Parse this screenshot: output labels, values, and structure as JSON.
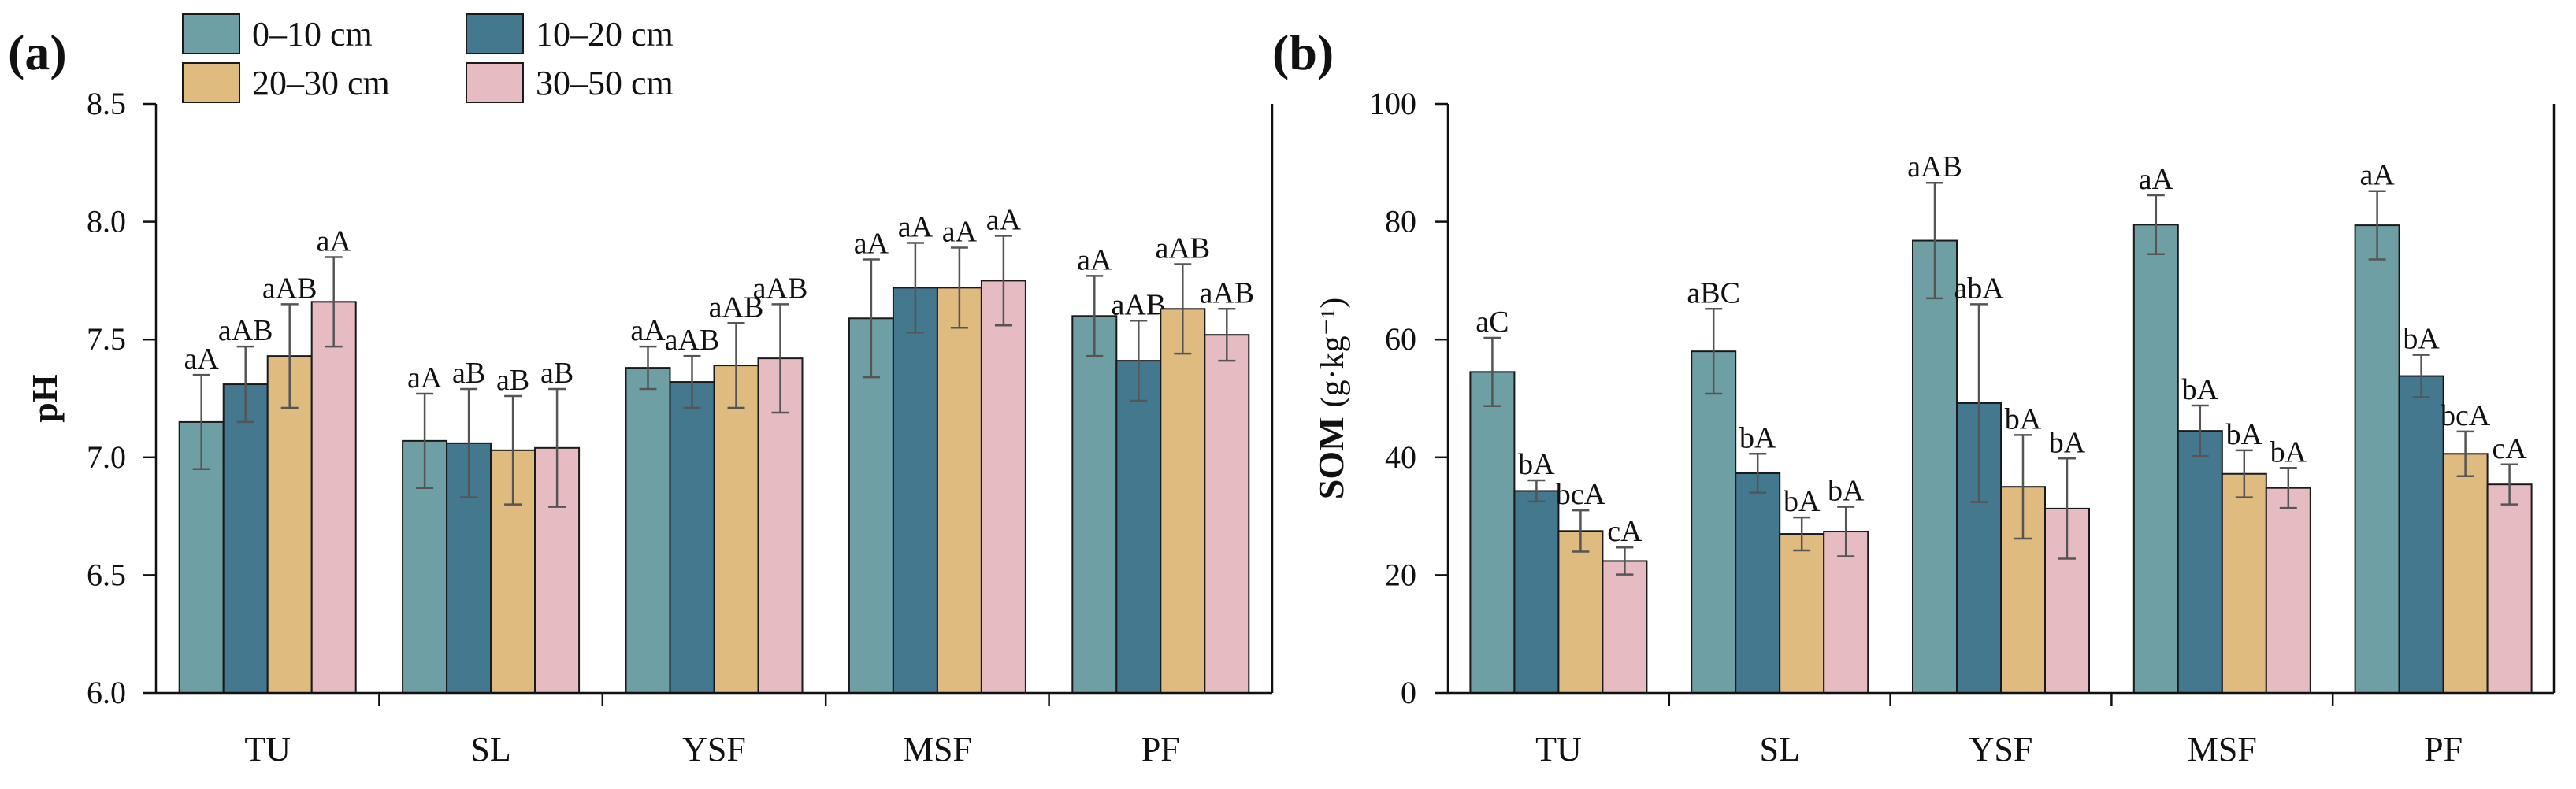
{
  "legend": {
    "entries": [
      {
        "label": "0–10 cm",
        "color": "#6e9fa4"
      },
      {
        "label": "10–20 cm",
        "color": "#44788e"
      },
      {
        "label": "20–30 cm",
        "color": "#e0bb80"
      },
      {
        "label": "30–50 cm",
        "color": "#e6bcc2"
      }
    ]
  },
  "chart_data": [
    {
      "panel": "(a)",
      "type": "bar",
      "ylabel": "pH",
      "ylim": [
        6.0,
        8.5
      ],
      "yticks": [
        6.0,
        6.5,
        7.0,
        7.5,
        8.0,
        8.5
      ],
      "ytick_labels": [
        "6.0",
        "6.5",
        "7.0",
        "7.5",
        "8.0",
        "8.5"
      ],
      "categories": [
        "TU",
        "SL",
        "YSF",
        "MSF",
        "PF"
      ],
      "series": [
        {
          "name": "0–10 cm",
          "values": [
            7.15,
            7.07,
            7.38,
            7.59,
            7.6
          ],
          "errors": [
            0.2,
            0.2,
            0.09,
            0.25,
            0.17
          ],
          "labels": [
            "aA",
            "aA",
            "aA",
            "aA",
            "aA"
          ]
        },
        {
          "name": "10–20 cm",
          "values": [
            7.31,
            7.06,
            7.32,
            7.72,
            7.41
          ],
          "errors": [
            0.16,
            0.23,
            0.11,
            0.19,
            0.17
          ],
          "labels": [
            "aAB",
            "aB",
            "aAB",
            "aA",
            "aAB"
          ]
        },
        {
          "name": "20–30 cm",
          "values": [
            7.43,
            7.03,
            7.39,
            7.72,
            7.63
          ],
          "errors": [
            0.22,
            0.23,
            0.18,
            0.17,
            0.19
          ],
          "labels": [
            "aAB",
            "aB",
            "aAB",
            "aA",
            "aAB"
          ]
        },
        {
          "name": "30–50 cm",
          "values": [
            7.66,
            7.04,
            7.42,
            7.75,
            7.52
          ],
          "errors": [
            0.19,
            0.25,
            0.23,
            0.19,
            0.11
          ],
          "labels": [
            "aA",
            "aB",
            "aAB",
            "aA",
            "aAB"
          ]
        }
      ]
    },
    {
      "panel": "(b)",
      "type": "bar",
      "ylabel": "SOM",
      "yunit": "(g·kg⁻¹)",
      "ylim": [
        0,
        100
      ],
      "yticks": [
        0,
        20,
        40,
        60,
        80,
        100
      ],
      "ytick_labels": [
        "0",
        "20",
        "40",
        "60",
        "80",
        "100"
      ],
      "categories": [
        "TU",
        "SL",
        "YSF",
        "MSF",
        "PF"
      ],
      "series": [
        {
          "name": "0–10 cm",
          "values": [
            54.5,
            58.0,
            76.8,
            79.5,
            79.4
          ],
          "errors": [
            5.8,
            7.2,
            9.8,
            5.0,
            5.8
          ],
          "labels": [
            "aC",
            "aBC",
            "aAB",
            "aA",
            "aA"
          ]
        },
        {
          "name": "10–20 cm",
          "values": [
            34.3,
            37.3,
            49.2,
            44.5,
            53.8
          ],
          "errors": [
            1.8,
            3.3,
            16.8,
            4.3,
            3.6
          ],
          "labels": [
            "bA",
            "bA",
            "abA",
            "bA",
            "bA"
          ]
        },
        {
          "name": "20–30 cm",
          "values": [
            27.5,
            27.0,
            35.0,
            37.2,
            40.6
          ],
          "errors": [
            3.5,
            2.8,
            8.8,
            4.0,
            3.8
          ],
          "labels": [
            "bcA",
            "bA",
            "bA",
            "bA",
            "bcA"
          ]
        },
        {
          "name": "30–50 cm",
          "values": [
            22.4,
            27.4,
            31.3,
            34.8,
            35.4
          ],
          "errors": [
            2.3,
            4.2,
            8.5,
            3.4,
            3.4
          ],
          "labels": [
            "cA",
            "bA",
            "bA",
            "bA",
            "cA"
          ]
        }
      ]
    }
  ]
}
